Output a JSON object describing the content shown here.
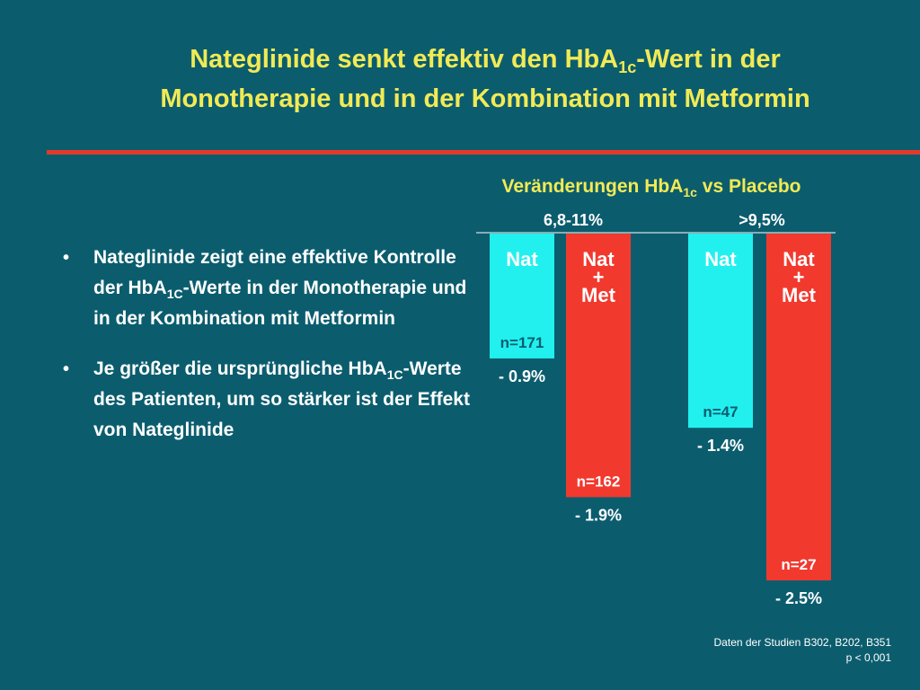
{
  "title": {
    "part1": "Nateglinide senkt effektiv den HbA",
    "sub": "1c",
    "part2": "-Wert in der",
    "line2": "Monotherapie und in der Kombination mit Metformin"
  },
  "bullets": [
    {
      "a": "Nateglinide zeigt eine effektive Kontrolle der  HbA",
      "sub": "1C",
      "b": "-Werte in der Monotherapie und in der Kombination mit Metformin"
    },
    {
      "a": "Je größer die ursprüngliche HbA",
      "sub": "1C",
      "b": "-Werte des Patienten, um so stärker ist der Effekt von Nateglinide"
    }
  ],
  "chart_data": {
    "type": "bar",
    "title": {
      "part1": "Veränderungen HbA",
      "sub": "1c",
      "part2": " vs Placebo"
    },
    "groups": [
      "6,8-11%",
      ">9,5%"
    ],
    "bars": [
      {
        "group": 0,
        "label": [
          "Nat"
        ],
        "value": -0.9,
        "n": "n=171",
        "value_label": "- 0.9%",
        "color": "#21f0ef"
      },
      {
        "group": 0,
        "label": [
          "Nat",
          "+",
          "Met"
        ],
        "value": -1.9,
        "n": "n=162",
        "value_label": "- 1.9%",
        "color": "#f2392e"
      },
      {
        "group": 1,
        "label": [
          "Nat"
        ],
        "value": -1.4,
        "n": "n=47",
        "value_label": "- 1.4%",
        "color": "#21f0ef"
      },
      {
        "group": 1,
        "label": [
          "Nat",
          "+",
          "Met"
        ],
        "value": -2.5,
        "n": "n=27",
        "value_label": "- 2.5%",
        "color": "#f2392e"
      }
    ],
    "ylim": [
      -2.5,
      0
    ],
    "grid": false
  },
  "source": {
    "line1": "Daten der Studien B302, B202, B351",
    "line2": "p < 0,001"
  },
  "colors": {
    "background": "#0b5d6e",
    "title": "#f2ea54",
    "accent_rule": "#e23a2b",
    "text": "#ffffff",
    "bar_text_on_cyan": "#ffffff",
    "bar_label_dark": "#0b2a36"
  }
}
